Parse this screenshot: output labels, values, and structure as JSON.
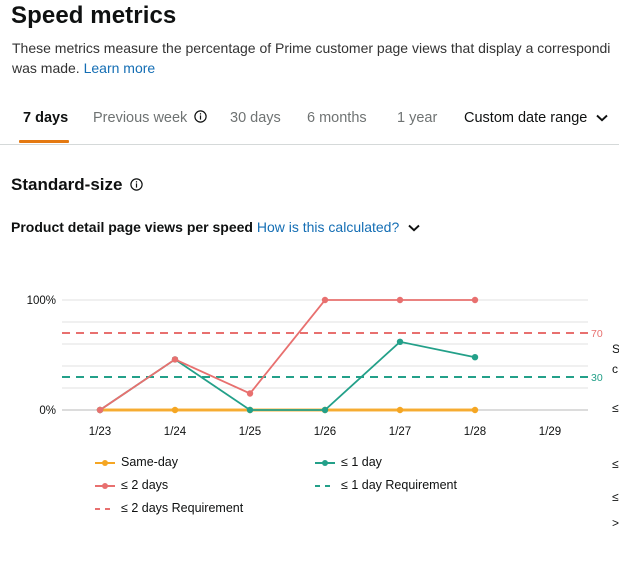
{
  "page": {
    "title": "Speed metrics",
    "description": "These metrics measure the percentage of Prime customer page views that display a correspondi",
    "description_line2": "was made.",
    "learn_more": "Learn more"
  },
  "tabs": [
    {
      "label": "7 days",
      "active": true
    },
    {
      "label": "Previous week",
      "info_icon": true
    },
    {
      "label": "30 days"
    },
    {
      "label": "6 months"
    },
    {
      "label": "1 year"
    },
    {
      "label": "Custom date range",
      "dropdown": true
    }
  ],
  "section": {
    "title": "Standard-size",
    "subhead_label": "Product detail page views per speed",
    "subhead_link": "How is this calculated?"
  },
  "colors": {
    "accent_tab": "#e47911",
    "link": "#146eb4",
    "same_day": "#f5a623",
    "one_day": "#23a089",
    "two_days": "#e8706f"
  },
  "chart_data": {
    "type": "line",
    "x": [
      "1/23",
      "1/24",
      "1/25",
      "1/26",
      "1/27",
      "1/28",
      "1/29"
    ],
    "y_ticks": [
      "0%",
      "100%"
    ],
    "ylim": [
      0,
      100
    ],
    "series": [
      {
        "name": "Same-day",
        "color": "#f5a623",
        "values": [
          0,
          0,
          0,
          0,
          0,
          0,
          null
        ]
      },
      {
        "name": "≤ 1 day",
        "color": "#23a089",
        "values": [
          0,
          46,
          0,
          0,
          62,
          48,
          null
        ]
      },
      {
        "name": "≤ 2 days",
        "color": "#e8706f",
        "values": [
          0,
          46,
          15,
          100,
          100,
          100,
          null
        ]
      }
    ],
    "reference_lines": [
      {
        "name": "≤ 1 day Requirement",
        "value": 30,
        "label": "30",
        "color": "#23a089"
      },
      {
        "name": "≤ 2 days Requirement",
        "value": 70,
        "label": "70",
        "color": "#e8706f"
      }
    ],
    "legend": [
      {
        "label": "Same-day",
        "kind": "line",
        "color": "#f5a623"
      },
      {
        "label": "≤ 1 day",
        "kind": "line",
        "color": "#23a089"
      },
      {
        "label": "≤ 2 days",
        "kind": "line",
        "color": "#e8706f"
      },
      {
        "label": "≤ 1 day Requirement",
        "kind": "dashed",
        "color": "#23a089"
      },
      {
        "label": "≤ 2 days Requirement",
        "kind": "dashed",
        "color": "#e8706f"
      }
    ]
  },
  "side_fragments": [
    "S",
    "c",
    "≤",
    "≤",
    "≤",
    ">"
  ]
}
